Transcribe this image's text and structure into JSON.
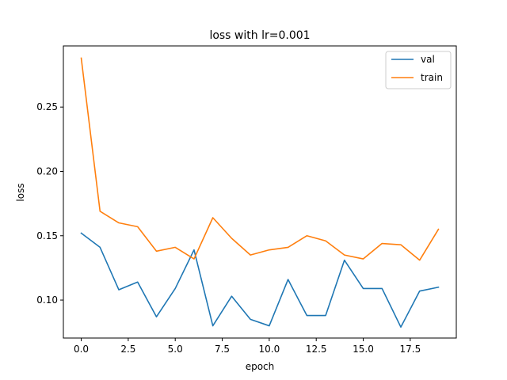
{
  "chart_data": {
    "type": "line",
    "title": "loss with lr=0.001",
    "xlabel": "epoch",
    "ylabel": "loss",
    "xlim": [
      -0.95,
      19.95
    ],
    "ylim": [
      0.0705,
      0.2975
    ],
    "xticks": [
      0,
      2.5,
      5,
      7.5,
      10,
      12.5,
      15,
      17.5
    ],
    "xtick_labels": [
      "0.0",
      "2.5",
      "5.0",
      "7.5",
      "10.0",
      "12.5",
      "15.0",
      "17.5"
    ],
    "yticks": [
      0.1,
      0.15,
      0.2,
      0.25
    ],
    "ytick_labels": [
      "0.10",
      "0.15",
      "0.20",
      "0.25"
    ],
    "grid": false,
    "legend_position": "top-right",
    "x": [
      0,
      1,
      2,
      3,
      4,
      5,
      6,
      7,
      8,
      9,
      10,
      11,
      12,
      13,
      14,
      15,
      16,
      17,
      18,
      19
    ],
    "series": [
      {
        "name": "val",
        "color": "#1f77b4",
        "values": [
          0.152,
          0.141,
          0.108,
          0.114,
          0.087,
          0.109,
          0.139,
          0.08,
          0.103,
          0.085,
          0.08,
          0.116,
          0.088,
          0.088,
          0.131,
          0.109,
          0.109,
          0.079,
          0.107,
          0.11
        ]
      },
      {
        "name": "train",
        "color": "#ff7f0e",
        "values": [
          0.288,
          0.169,
          0.16,
          0.157,
          0.138,
          0.141,
          0.132,
          0.164,
          0.148,
          0.135,
          0.139,
          0.141,
          0.15,
          0.146,
          0.135,
          0.132,
          0.144,
          0.143,
          0.131,
          0.155
        ]
      }
    ]
  }
}
